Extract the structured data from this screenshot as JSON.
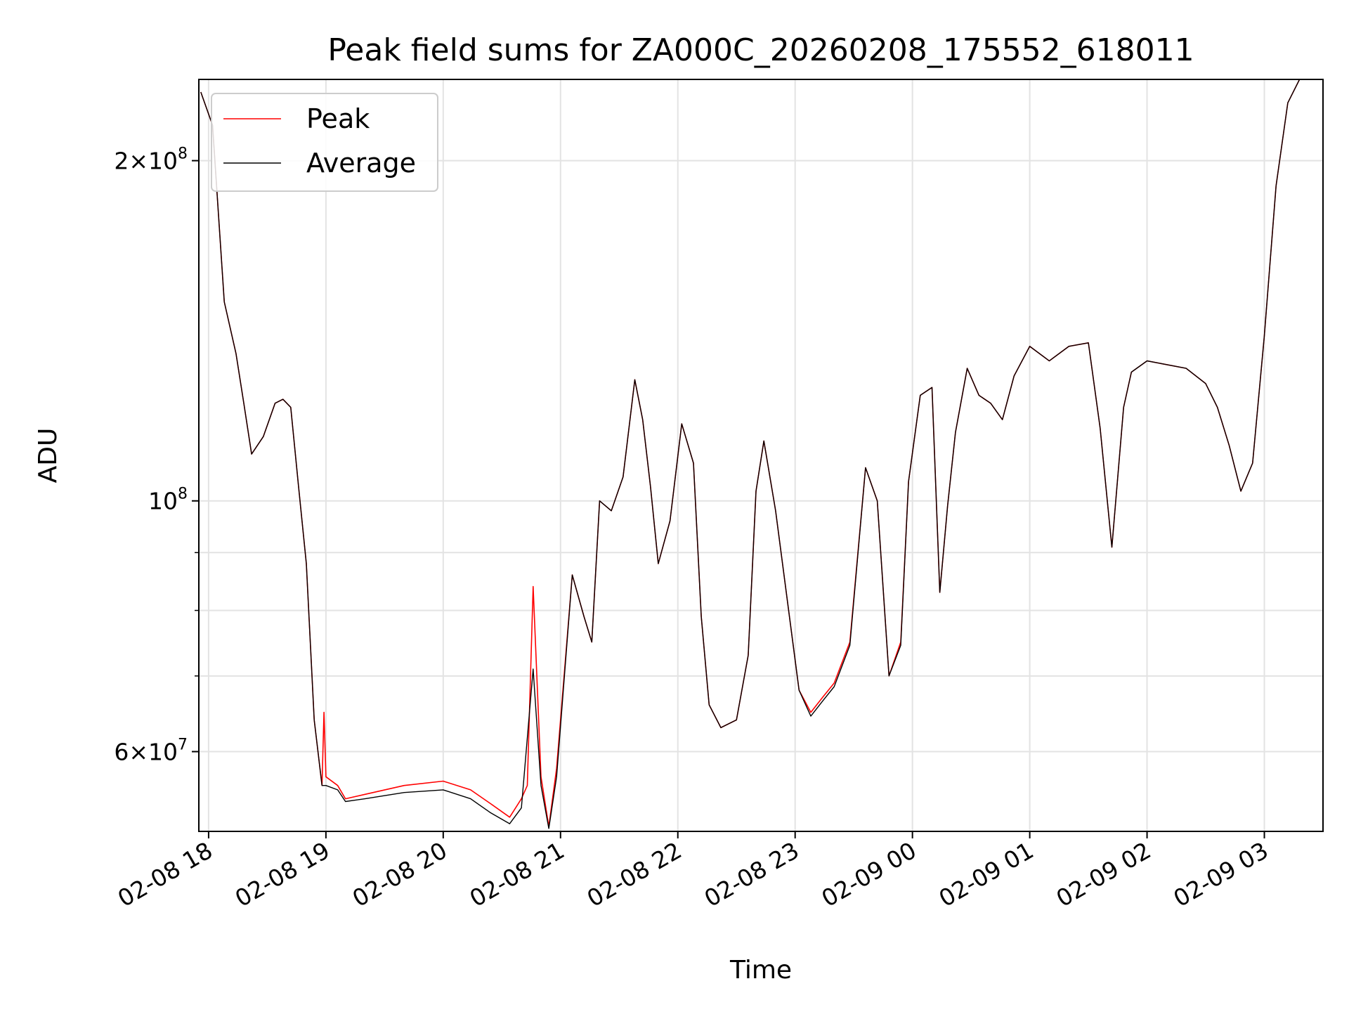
{
  "chart_data": {
    "type": "line",
    "title": "Peak field sums for ZA000C_20260208_175552_618011",
    "xlabel": "Time",
    "ylabel": "ADU",
    "yscale": "log",
    "ylim": [
      51000000,
      236000000
    ],
    "xlim": [
      "2026-02-08 17:55",
      "2026-02-09 03:30"
    ],
    "grid": true,
    "legend_position": "top-left",
    "x_ticks": [
      {
        "t": "2026-02-08 18:00",
        "label": "02-08 18"
      },
      {
        "t": "2026-02-08 19:00",
        "label": "02-08 19"
      },
      {
        "t": "2026-02-08 20:00",
        "label": "02-08 20"
      },
      {
        "t": "2026-02-08 21:00",
        "label": "02-08 21"
      },
      {
        "t": "2026-02-08 22:00",
        "label": "02-08 22"
      },
      {
        "t": "2026-02-08 23:00",
        "label": "02-08 23"
      },
      {
        "t": "2026-02-09 00:00",
        "label": "02-09 00"
      },
      {
        "t": "2026-02-09 01:00",
        "label": "02-09 01"
      },
      {
        "t": "2026-02-09 02:00",
        "label": "02-09 02"
      },
      {
        "t": "2026-02-09 03:00",
        "label": "02-09 03"
      }
    ],
    "y_ticks": [
      {
        "value": 60000000,
        "mantissa": "6",
        "exponent": "7"
      },
      {
        "value": 100000000,
        "mantissa": "",
        "exponent": "8"
      },
      {
        "value": 200000000,
        "mantissa": "2",
        "exponent": "8"
      }
    ],
    "y_minor_gridlines": [
      70000000,
      80000000,
      90000000
    ],
    "series": [
      {
        "name": "Peak",
        "color": "#ff0000",
        "x": [
          "2026-02-08 17:56",
          "2026-02-08 18:02",
          "2026-02-08 18:08",
          "2026-02-08 18:14",
          "2026-02-08 18:18",
          "2026-02-08 18:22",
          "2026-02-08 18:28",
          "2026-02-08 18:34",
          "2026-02-08 18:38",
          "2026-02-08 18:42",
          "2026-02-08 18:46",
          "2026-02-08 18:50",
          "2026-02-08 18:54",
          "2026-02-08 18:58",
          "2026-02-08 18:59",
          "2026-02-08 19:00",
          "2026-02-08 19:06",
          "2026-02-08 19:10",
          "2026-02-08 19:20",
          "2026-02-08 19:40",
          "2026-02-08 20:00",
          "2026-02-08 20:14",
          "2026-02-08 20:24",
          "2026-02-08 20:34",
          "2026-02-08 20:40",
          "2026-02-08 20:43",
          "2026-02-08 20:46",
          "2026-02-08 20:50",
          "2026-02-08 20:54",
          "2026-02-08 20:58",
          "2026-02-08 21:06",
          "2026-02-08 21:12",
          "2026-02-08 21:16",
          "2026-02-08 21:20",
          "2026-02-08 21:26",
          "2026-02-08 21:32",
          "2026-02-08 21:38",
          "2026-02-08 21:42",
          "2026-02-08 21:46",
          "2026-02-08 21:50",
          "2026-02-08 21:56",
          "2026-02-08 22:02",
          "2026-02-08 22:08",
          "2026-02-08 22:12",
          "2026-02-08 22:16",
          "2026-02-08 22:22",
          "2026-02-08 22:30",
          "2026-02-08 22:36",
          "2026-02-08 22:40",
          "2026-02-08 22:44",
          "2026-02-08 22:50",
          "2026-02-08 23:02",
          "2026-02-08 23:08",
          "2026-02-08 23:14",
          "2026-02-08 23:20",
          "2026-02-08 23:28",
          "2026-02-08 23:36",
          "2026-02-08 23:42",
          "2026-02-08 23:48",
          "2026-02-08 23:54",
          "2026-02-08 23:58",
          "2026-02-09 00:04",
          "2026-02-09 00:10",
          "2026-02-09 00:14",
          "2026-02-09 00:18",
          "2026-02-09 00:22",
          "2026-02-09 00:28",
          "2026-02-09 00:34",
          "2026-02-09 00:40",
          "2026-02-09 00:46",
          "2026-02-09 00:52",
          "2026-02-09 01:00",
          "2026-02-09 01:10",
          "2026-02-09 01:20",
          "2026-02-09 01:30",
          "2026-02-09 01:36",
          "2026-02-09 01:42",
          "2026-02-09 01:48",
          "2026-02-09 01:52",
          "2026-02-09 02:00",
          "2026-02-09 02:10",
          "2026-02-09 02:20",
          "2026-02-09 02:30",
          "2026-02-09 02:36",
          "2026-02-09 02:42",
          "2026-02-09 02:48",
          "2026-02-09 02:54",
          "2026-02-09 03:00",
          "2026-02-09 03:06",
          "2026-02-09 03:12",
          "2026-02-09 03:18",
          "2026-02-09 03:24",
          "2026-02-09 03:30"
        ],
        "values": [
          230000000,
          215000000,
          150000000,
          135000000,
          122000000,
          110000000,
          114000000,
          122000000,
          123000000,
          121000000,
          103000000,
          88000000,
          64000000,
          56000000,
          65000000,
          57000000,
          56000000,
          54500000,
          55000000,
          56000000,
          56500000,
          55500000,
          54000000,
          52500000,
          54500000,
          56000000,
          84000000,
          57000000,
          51500000,
          58000000,
          86000000,
          79000000,
          75000000,
          100000000,
          98000000,
          105000000,
          128000000,
          118000000,
          103000000,
          88000000,
          96000000,
          117000000,
          108000000,
          79000000,
          66000000,
          63000000,
          64000000,
          73000000,
          102000000,
          113000000,
          98000000,
          68000000,
          65000000,
          67000000,
          69000000,
          75000000,
          107000000,
          100000000,
          70000000,
          75000000,
          104000000,
          124000000,
          126000000,
          83000000,
          99000000,
          115000000,
          131000000,
          124000000,
          122000000,
          118000000,
          129000000,
          137000000,
          133000000,
          137000000,
          138000000,
          116000000,
          91000000,
          121000000,
          130000000,
          133000000,
          132000000,
          131000000,
          127000000,
          121000000,
          112000000,
          102000000,
          108000000,
          140000000,
          190000000,
          225000000,
          236000000,
          236000000,
          236000000
        ]
      },
      {
        "name": "Average",
        "color": "#000000",
        "x": [
          "2026-02-08 17:56",
          "2026-02-08 18:02",
          "2026-02-08 18:08",
          "2026-02-08 18:14",
          "2026-02-08 18:18",
          "2026-02-08 18:22",
          "2026-02-08 18:28",
          "2026-02-08 18:34",
          "2026-02-08 18:38",
          "2026-02-08 18:42",
          "2026-02-08 18:46",
          "2026-02-08 18:50",
          "2026-02-08 18:54",
          "2026-02-08 18:58",
          "2026-02-08 19:00",
          "2026-02-08 19:06",
          "2026-02-08 19:10",
          "2026-02-08 19:20",
          "2026-02-08 19:40",
          "2026-02-08 20:00",
          "2026-02-08 20:14",
          "2026-02-08 20:24",
          "2026-02-08 20:34",
          "2026-02-08 20:40",
          "2026-02-08 20:46",
          "2026-02-08 20:50",
          "2026-02-08 20:54",
          "2026-02-08 20:58",
          "2026-02-08 21:06",
          "2026-02-08 21:12",
          "2026-02-08 21:16",
          "2026-02-08 21:20",
          "2026-02-08 21:26",
          "2026-02-08 21:32",
          "2026-02-08 21:38",
          "2026-02-08 21:42",
          "2026-02-08 21:46",
          "2026-02-08 21:50",
          "2026-02-08 21:56",
          "2026-02-08 22:02",
          "2026-02-08 22:08",
          "2026-02-08 22:12",
          "2026-02-08 22:16",
          "2026-02-08 22:22",
          "2026-02-08 22:30",
          "2026-02-08 22:36",
          "2026-02-08 22:40",
          "2026-02-08 22:44",
          "2026-02-08 22:50",
          "2026-02-08 23:02",
          "2026-02-08 23:08",
          "2026-02-08 23:14",
          "2026-02-08 23:20",
          "2026-02-08 23:28",
          "2026-02-08 23:36",
          "2026-02-08 23:42",
          "2026-02-08 23:48",
          "2026-02-08 23:54",
          "2026-02-08 23:58",
          "2026-02-09 00:04",
          "2026-02-09 00:10",
          "2026-02-09 00:14",
          "2026-02-09 00:18",
          "2026-02-09 00:22",
          "2026-02-09 00:28",
          "2026-02-09 00:34",
          "2026-02-09 00:40",
          "2026-02-09 00:46",
          "2026-02-09 00:52",
          "2026-02-09 01:00",
          "2026-02-09 01:10",
          "2026-02-09 01:20",
          "2026-02-09 01:30",
          "2026-02-09 01:36",
          "2026-02-09 01:42",
          "2026-02-09 01:48",
          "2026-02-09 01:52",
          "2026-02-09 02:00",
          "2026-02-09 02:10",
          "2026-02-09 02:20",
          "2026-02-09 02:30",
          "2026-02-09 02:36",
          "2026-02-09 02:42",
          "2026-02-09 02:48",
          "2026-02-09 02:54",
          "2026-02-09 03:00",
          "2026-02-09 03:06",
          "2026-02-09 03:12",
          "2026-02-09 03:18",
          "2026-02-09 03:24",
          "2026-02-09 03:30"
        ],
        "values": [
          230000000,
          215000000,
          150000000,
          135000000,
          122000000,
          110000000,
          114000000,
          122000000,
          123000000,
          121000000,
          103000000,
          88000000,
          64000000,
          56000000,
          56000000,
          55500000,
          54200000,
          54500000,
          55200000,
          55500000,
          54500000,
          53000000,
          51800000,
          53500000,
          71000000,
          56000000,
          51300000,
          57000000,
          86000000,
          79000000,
          75000000,
          100000000,
          98000000,
          105000000,
          128000000,
          118000000,
          103000000,
          88000000,
          96000000,
          117000000,
          108000000,
          79000000,
          66000000,
          63000000,
          64000000,
          73000000,
          102000000,
          113000000,
          98000000,
          68000000,
          64500000,
          66500000,
          68500000,
          74500000,
          107000000,
          100000000,
          70000000,
          74500000,
          104000000,
          124000000,
          126000000,
          83000000,
          99000000,
          115000000,
          131000000,
          124000000,
          122000000,
          118000000,
          129000000,
          137000000,
          133000000,
          137000000,
          138000000,
          116000000,
          91000000,
          121000000,
          130000000,
          133000000,
          132000000,
          131000000,
          127000000,
          121000000,
          112000000,
          102000000,
          108000000,
          140000000,
          190000000,
          225000000,
          236000000,
          236000000,
          236000000
        ]
      }
    ]
  }
}
